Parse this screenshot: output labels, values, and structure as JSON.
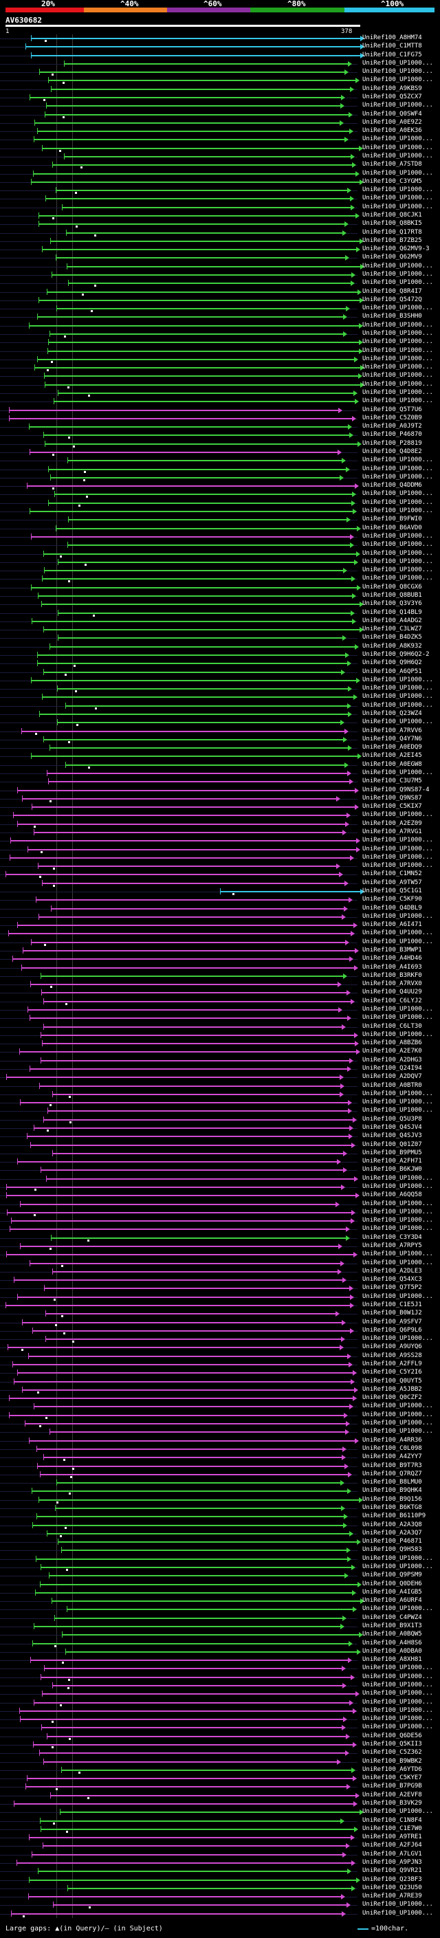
{
  "scale": {
    "labels": [
      "20%",
      "^40%",
      "^60%",
      "^80%",
      "^100%"
    ],
    "colors": [
      "#e5141c",
      "#ef7f22",
      "#8b2fa0",
      "#1fa11f",
      "#2ec3e6"
    ]
  },
  "query": {
    "id": "AV630682",
    "start": "1",
    "end": "378"
  },
  "colors": {
    "cyan": "#35c7e7",
    "green": "#3fd13f",
    "magenta": "#d34bd3",
    "red": "#e5141c"
  },
  "hits": [
    {
      "name": "UniRef100_A8HM74",
      "color": "cyan"
    },
    {
      "name": "UniRef100_C1MTT8",
      "color": "cyan"
    },
    {
      "name": "UniRef100_C1FG75",
      "color": "cyan"
    },
    {
      "name": "UniRef100_UP1000...",
      "color": "green"
    },
    {
      "name": "UniRef100_UP1000...",
      "color": "green"
    },
    {
      "name": "UniRef100_UP1000...",
      "color": "green"
    },
    {
      "name": "UniRef100_A9KBS9",
      "color": "green"
    },
    {
      "name": "UniRef100_Q5ZCX7",
      "color": "green"
    },
    {
      "name": "UniRef100_UP1000...",
      "color": "green"
    },
    {
      "name": "UniRef100_Q0SWF4",
      "color": "green"
    },
    {
      "name": "UniRef100_A0E9Z2",
      "color": "green"
    },
    {
      "name": "UniRef100_A0EK36",
      "color": "green"
    },
    {
      "name": "UniRef100_UP1000...",
      "color": "green"
    },
    {
      "name": "UniRef100_UP1000...",
      "color": "green"
    },
    {
      "name": "UniRef100_UP1000...",
      "color": "green"
    },
    {
      "name": "UniRef100_A7STD8",
      "color": "green"
    },
    {
      "name": "UniRef100_UP1000...",
      "color": "green"
    },
    {
      "name": "UniRef100_C3YGM5",
      "color": "green"
    },
    {
      "name": "UniRef100_UP1000...",
      "color": "green"
    },
    {
      "name": "UniRef100_UP1000...",
      "color": "green"
    },
    {
      "name": "UniRef100_UP1000...",
      "color": "green"
    },
    {
      "name": "UniRef100_Q8CJK1",
      "color": "green"
    },
    {
      "name": "UniRef100_Q8BKI5",
      "color": "green"
    },
    {
      "name": "UniRef100_Q17RT8",
      "color": "green"
    },
    {
      "name": "UniRef100_B7ZB25",
      "color": "green"
    },
    {
      "name": "UniRef100_Q62MV9-3",
      "color": "green"
    },
    {
      "name": "UniRef100_Q62MV9",
      "color": "green"
    },
    {
      "name": "UniRef100_UP1000...",
      "color": "green"
    },
    {
      "name": "UniRef100_UP1000...",
      "color": "green"
    },
    {
      "name": "UniRef100_UP1000...",
      "color": "green"
    },
    {
      "name": "UniRef100_Q8R4I7",
      "color": "green"
    },
    {
      "name": "UniRef100_Q5472Q",
      "color": "green"
    },
    {
      "name": "UniRef100_UP1000...",
      "color": "green"
    },
    {
      "name": "UniRef100_B3SHH0",
      "color": "green"
    },
    {
      "name": "UniRef100_UP1000...",
      "color": "green"
    },
    {
      "name": "UniRef100_UP1000...",
      "color": "green"
    },
    {
      "name": "UniRef100_UP1000...",
      "color": "green"
    },
    {
      "name": "UniRef100_UP1000...",
      "color": "green"
    },
    {
      "name": "UniRef100_UP1000...",
      "color": "green"
    },
    {
      "name": "UniRef100_UP1000...",
      "color": "green"
    },
    {
      "name": "UniRef100_UP1000...",
      "color": "green"
    },
    {
      "name": "UniRef100_UP1000...",
      "color": "green"
    },
    {
      "name": "UniRef100_UP1000...",
      "color": "green"
    },
    {
      "name": "UniRef100_UP1000...",
      "color": "green"
    },
    {
      "name": "UniRef100_Q5T7U6",
      "color": "magenta"
    },
    {
      "name": "UniRef100_C5Z0B9",
      "color": "magenta"
    },
    {
      "name": "UniRef100_A0J9T2",
      "color": "green"
    },
    {
      "name": "UniRef100_P46870",
      "color": "green"
    },
    {
      "name": "UniRef100_P28819",
      "color": "green"
    },
    {
      "name": "UniRef100_Q4D8E2",
      "color": "magenta"
    },
    {
      "name": "UniRef100_UP1000...",
      "color": "green"
    },
    {
      "name": "UniRef100_UP1000...",
      "color": "green"
    },
    {
      "name": "UniRef100_UP1000...",
      "color": "green"
    },
    {
      "name": "UniRef100_Q4DDM6",
      "color": "magenta"
    },
    {
      "name": "UniRef100_UP1000...",
      "color": "green"
    },
    {
      "name": "UniRef100_UP1000...",
      "color": "green"
    },
    {
      "name": "UniRef100_UP1000...",
      "color": "green"
    },
    {
      "name": "UniRef100_B9FWI0",
      "color": "green"
    },
    {
      "name": "UniRef100_B6AVD0",
      "color": "green"
    },
    {
      "name": "UniRef100_UP1000...",
      "color": "magenta"
    },
    {
      "name": "UniRef100_UP1000...",
      "color": "green"
    },
    {
      "name": "UniRef100_UP1000...",
      "color": "green"
    },
    {
      "name": "UniRef100_UP1000...",
      "color": "green"
    },
    {
      "name": "UniRef100_UP1000...",
      "color": "green"
    },
    {
      "name": "UniRef100_UP1000...",
      "color": "green"
    },
    {
      "name": "UniRef100_Q8CGX6",
      "color": "green"
    },
    {
      "name": "UniRef100_Q8BUB1",
      "color": "green"
    },
    {
      "name": "UniRef100_Q3V3Y6",
      "color": "green"
    },
    {
      "name": "UniRef100_Q14BL9",
      "color": "green"
    },
    {
      "name": "UniRef100_A4ADG2",
      "color": "green"
    },
    {
      "name": "UniRef100_C3LWZ7",
      "color": "green"
    },
    {
      "name": "UniRef100_B4DZK5",
      "color": "green"
    },
    {
      "name": "UniRef100_A8K932",
      "color": "green"
    },
    {
      "name": "UniRef100_Q9H6Q2-2",
      "color": "green"
    },
    {
      "name": "UniRef100_Q9H6Q2",
      "color": "green"
    },
    {
      "name": "UniRef100_A6QP51",
      "color": "green"
    },
    {
      "name": "UniRef100_UP1000...",
      "color": "green"
    },
    {
      "name": "UniRef100_UP1000...",
      "color": "green"
    },
    {
      "name": "UniRef100_UP1000...",
      "color": "green"
    },
    {
      "name": "UniRef100_UP1000...",
      "color": "green"
    },
    {
      "name": "UniRef100_Q23WZ4",
      "color": "green"
    },
    {
      "name": "UniRef100_UP1000...",
      "color": "green"
    },
    {
      "name": "UniRef100_A7RVV6",
      "color": "magenta"
    },
    {
      "name": "UniRef100_Q4Y7N6",
      "color": "green"
    },
    {
      "name": "UniRef100_A0EDQ9",
      "color": "green"
    },
    {
      "name": "UniRef100_A2EI45",
      "color": "green"
    },
    {
      "name": "UniRef100_A0EGW8",
      "color": "green"
    },
    {
      "name": "UniRef100_UP1000...",
      "color": "magenta"
    },
    {
      "name": "UniRef100_C3U7M5",
      "color": "magenta"
    },
    {
      "name": "UniRef100_Q9NS87-4",
      "color": "magenta"
    },
    {
      "name": "UniRef100_Q9NS87",
      "color": "magenta"
    },
    {
      "name": "UniRef100_C5KIX7",
      "color": "magenta"
    },
    {
      "name": "UniRef100_UP1000...",
      "color": "magenta"
    },
    {
      "name": "UniRef100_A2EZ09",
      "color": "magenta"
    },
    {
      "name": "UniRef100_A7RVG1",
      "color": "magenta"
    },
    {
      "name": "UniRef100_UP1000...",
      "color": "magenta"
    },
    {
      "name": "UniRef100_UP1000...",
      "color": "magenta"
    },
    {
      "name": "UniRef100_UP1000...",
      "color": "magenta"
    },
    {
      "name": "UniRef100_UP1000...",
      "color": "magenta"
    },
    {
      "name": "UniRef100_C1MN52",
      "color": "magenta"
    },
    {
      "name": "UniRef100_A9TW57",
      "color": "magenta"
    },
    {
      "name": "UniRef100_Q5C1G1",
      "color": "cyan"
    },
    {
      "name": "UniRef100_C5KF90",
      "color": "magenta"
    },
    {
      "name": "UniRef100_Q4DBL9",
      "color": "magenta"
    },
    {
      "name": "UniRef100_UP1000...",
      "color": "magenta"
    },
    {
      "name": "UniRef100_A6I471",
      "color": "magenta"
    },
    {
      "name": "UniRef100_UP1000...",
      "color": "magenta"
    },
    {
      "name": "UniRef100_UP1000...",
      "color": "magenta"
    },
    {
      "name": "UniRef100_B3MWP1",
      "color": "magenta"
    },
    {
      "name": "UniRef100_A4HD46",
      "color": "magenta"
    },
    {
      "name": "UniRef100_A4I693",
      "color": "magenta"
    },
    {
      "name": "UniRef100_B3RKF0",
      "color": "green"
    },
    {
      "name": "UniRef100_A7RVX0",
      "color": "magenta"
    },
    {
      "name": "UniRef100_Q4UU29",
      "color": "magenta"
    },
    {
      "name": "UniRef100_C6LYJ2",
      "color": "magenta"
    },
    {
      "name": "UniRef100_UP1000...",
      "color": "magenta"
    },
    {
      "name": "UniRef100_UP1000...",
      "color": "magenta"
    },
    {
      "name": "UniRef100_C6LT30",
      "color": "magenta"
    },
    {
      "name": "UniRef100_UP1000...",
      "color": "magenta"
    },
    {
      "name": "UniRef100_A8BZB6",
      "color": "magenta"
    },
    {
      "name": "UniRef100_A2E7K0",
      "color": "magenta"
    },
    {
      "name": "UniRef100_A2DHG3",
      "color": "magenta"
    },
    {
      "name": "UniRef100_Q24I94",
      "color": "magenta"
    },
    {
      "name": "UniRef100_A2DQV7",
      "color": "magenta"
    },
    {
      "name": "UniRef100_A0BTR0",
      "color": "magenta"
    },
    {
      "name": "UniRef100_UP1000...",
      "color": "magenta"
    },
    {
      "name": "UniRef100_UP1000...",
      "color": "magenta"
    },
    {
      "name": "UniRef100_UP1000...",
      "color": "magenta"
    },
    {
      "name": "UniRef100_Q5U3P8",
      "color": "magenta"
    },
    {
      "name": "UniRef100_Q4SJV4",
      "color": "magenta"
    },
    {
      "name": "UniRef100_Q4SJV3",
      "color": "magenta"
    },
    {
      "name": "UniRef100_Q01Z07",
      "color": "magenta"
    },
    {
      "name": "UniRef100_B9PMU5",
      "color": "magenta"
    },
    {
      "name": "UniRef100_A2FH71",
      "color": "magenta"
    },
    {
      "name": "UniRef100_B6KJW0",
      "color": "magenta"
    },
    {
      "name": "UniRef100_UP1000...",
      "color": "magenta"
    },
    {
      "name": "UniRef100_UP1000...",
      "color": "magenta"
    },
    {
      "name": "UniRef100_A6QQ58",
      "color": "magenta"
    },
    {
      "name": "UniRef100_UP1000...",
      "color": "magenta"
    },
    {
      "name": "UniRef100_UP1000...",
      "color": "magenta"
    },
    {
      "name": "UniRef100_UP1000...",
      "color": "magenta"
    },
    {
      "name": "UniRef100_UP1000...",
      "color": "magenta"
    },
    {
      "name": "UniRef100_C3Y3D4",
      "color": "green"
    },
    {
      "name": "UniRef100_A7RPY5",
      "color": "magenta"
    },
    {
      "name": "UniRef100_UP1000...",
      "color": "magenta"
    },
    {
      "name": "UniRef100_UP1000...",
      "color": "magenta"
    },
    {
      "name": "UniRef100_A2DLE3",
      "color": "magenta"
    },
    {
      "name": "UniRef100_Q54XC3",
      "color": "magenta"
    },
    {
      "name": "UniRef100_Q7T5P2",
      "color": "magenta"
    },
    {
      "name": "UniRef100_UP1000...",
      "color": "magenta"
    },
    {
      "name": "UniRef100_C1E5J1",
      "color": "magenta"
    },
    {
      "name": "UniRef100_B0W1J2",
      "color": "magenta"
    },
    {
      "name": "UniRef100_A9SFV7",
      "color": "magenta"
    },
    {
      "name": "UniRef100_Q6P9L6",
      "color": "magenta"
    },
    {
      "name": "UniRef100_UP1000...",
      "color": "magenta"
    },
    {
      "name": "UniRef100_A9UYQ6",
      "color": "magenta"
    },
    {
      "name": "UniRef100_A9SS28",
      "color": "magenta"
    },
    {
      "name": "UniRef100_A2FFL9",
      "color": "magenta"
    },
    {
      "name": "UniRef100_C5Y2I6",
      "color": "magenta"
    },
    {
      "name": "UniRef100_Q0UYT5",
      "color": "magenta"
    },
    {
      "name": "UniRef100_A5JBB2",
      "color": "magenta"
    },
    {
      "name": "UniRef100_Q0CZF2",
      "color": "magenta"
    },
    {
      "name": "UniRef100_UP1000...",
      "color": "magenta"
    },
    {
      "name": "UniRef100_UP1000...",
      "color": "magenta"
    },
    {
      "name": "UniRef100_UP1000...",
      "color": "magenta"
    },
    {
      "name": "UniRef100_UP1000...",
      "color": "magenta"
    },
    {
      "name": "UniRef100_A4RR36",
      "color": "magenta"
    },
    {
      "name": "UniRef100_C0L098",
      "color": "magenta"
    },
    {
      "name": "UniRef100_A4ZYY7",
      "color": "magenta"
    },
    {
      "name": "UniRef100_B9T7R3",
      "color": "magenta"
    },
    {
      "name": "UniRef100_Q7RQZ7",
      "color": "magenta"
    },
    {
      "name": "UniRef100_B8LMU0",
      "color": "green"
    },
    {
      "name": "UniRef100_B9QHK4",
      "color": "green"
    },
    {
      "name": "UniRef100_B9Q156",
      "color": "green"
    },
    {
      "name": "UniRef100_B6KTG8",
      "color": "green"
    },
    {
      "name": "UniRef100_B6110P9",
      "color": "green"
    },
    {
      "name": "UniRef100_A2A3Q8",
      "color": "green"
    },
    {
      "name": "UniRef100_A2A3Q7",
      "color": "green"
    },
    {
      "name": "UniRef100_P46871",
      "color": "green"
    },
    {
      "name": "UniRef100_Q9H583",
      "color": "green"
    },
    {
      "name": "UniRef100_UP1000...",
      "color": "green"
    },
    {
      "name": "UniRef100_UP1000...",
      "color": "green"
    },
    {
      "name": "UniRef100_Q9PSM9",
      "color": "green"
    },
    {
      "name": "UniRef100_Q0DEH6",
      "color": "green"
    },
    {
      "name": "UniRef100_A4IGB5",
      "color": "green"
    },
    {
      "name": "UniRef100_A6URF4",
      "color": "green"
    },
    {
      "name": "UniRef100_UP1000...",
      "color": "green"
    },
    {
      "name": "UniRef100_C4PWZ4",
      "color": "green"
    },
    {
      "name": "UniRef100_B9X1T3",
      "color": "green"
    },
    {
      "name": "UniRef100_A0BQW5",
      "color": "green"
    },
    {
      "name": "UniRef100_A4H8S6",
      "color": "green"
    },
    {
      "name": "UniRef100_A0DBA0",
      "color": "green"
    },
    {
      "name": "UniRef100_A8XH81",
      "color": "magenta"
    },
    {
      "name": "UniRef100_UP1000...",
      "color": "magenta"
    },
    {
      "name": "UniRef100_UP1000...",
      "color": "magenta"
    },
    {
      "name": "UniRef100_UP1000...",
      "color": "magenta"
    },
    {
      "name": "UniRef100_UP1000...",
      "color": "magenta"
    },
    {
      "name": "UniRef100_UP1000...",
      "color": "magenta"
    },
    {
      "name": "UniRef100_UP1000...",
      "color": "magenta"
    },
    {
      "name": "UniRef100_UP1000...",
      "color": "magenta"
    },
    {
      "name": "UniRef100_UP1000...",
      "color": "magenta"
    },
    {
      "name": "UniRef100_Q6DE56",
      "color": "magenta"
    },
    {
      "name": "UniRef100_Q5KII3",
      "color": "magenta"
    },
    {
      "name": "UniRef100_C5Z362",
      "color": "magenta"
    },
    {
      "name": "UniRef100_B9WBK2",
      "color": "magenta"
    },
    {
      "name": "UniRef100_A6YTD6",
      "color": "green"
    },
    {
      "name": "UniRef100_C5KYE7",
      "color": "magenta"
    },
    {
      "name": "UniRef100_B7PG9B",
      "color": "magenta"
    },
    {
      "name": "UniRef100_A2EVF8",
      "color": "magenta"
    },
    {
      "name": "UniRef100_B3VK29",
      "color": "magenta"
    },
    {
      "name": "UniRef100_UP1000...",
      "color": "green"
    },
    {
      "name": "UniRef100_C1N8F4",
      "color": "green"
    },
    {
      "name": "UniRef100_C1E7W0",
      "color": "green"
    },
    {
      "name": "UniRef100_A9TRE1",
      "color": "magenta"
    },
    {
      "name": "UniRef100_A2FJ64",
      "color": "magenta"
    },
    {
      "name": "UniRef100_A7LGV1",
      "color": "magenta"
    },
    {
      "name": "UniRef100_A9PJN3",
      "color": "magenta"
    },
    {
      "name": "UniRef100_Q9VR21",
      "color": "green"
    },
    {
      "name": "UniRef100_Q23BF3",
      "color": "green"
    },
    {
      "name": "UniRef100_Q23U50",
      "color": "green"
    },
    {
      "name": "UniRef100_A7RE39",
      "color": "magenta"
    },
    {
      "name": "UniRef100_UP1000...",
      "color": "magenta"
    },
    {
      "name": "UniRef100_UP1000...",
      "color": "magenta"
    }
  ],
  "footer": {
    "legend_left": "Large gaps: ▲(in Query)/– (in Subject)",
    "legend_right": "=100char."
  }
}
